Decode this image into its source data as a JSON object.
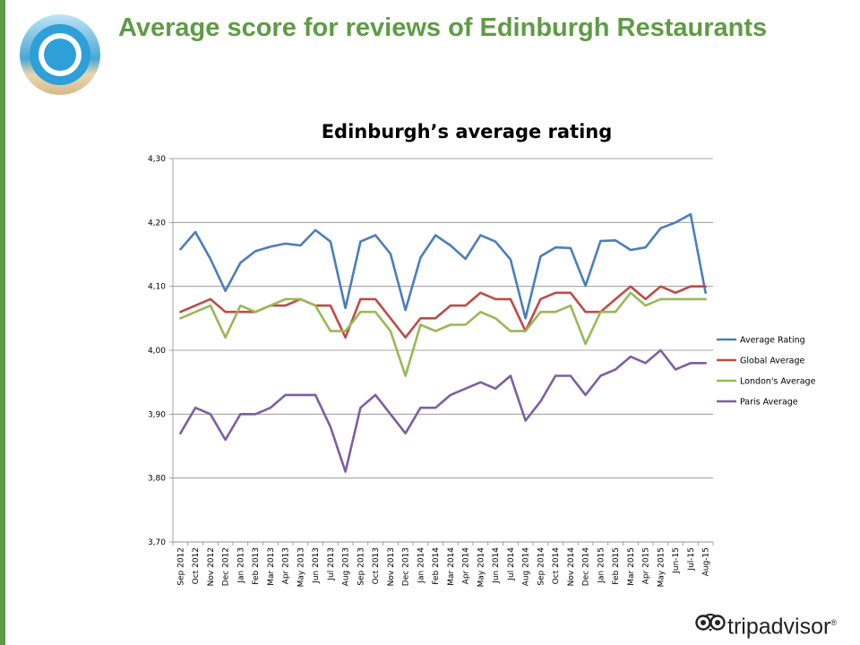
{
  "page": {
    "title": "Average score for reviews of Edinburgh Restaurants"
  },
  "brand": {
    "name": "tripadvisor",
    "mark": "®",
    "icon": "owl-eyes-icon",
    "color": "#222222"
  },
  "colors": {
    "accent_bar": "#5b9a46",
    "title": "#5f9b45",
    "logo_ring": "#2e9fd8"
  },
  "chart_data": {
    "type": "line",
    "title": "Edinburgh’s average rating",
    "xlabel": "",
    "ylabel": "",
    "ylim": [
      3.7,
      4.3
    ],
    "yticks": [
      "3,70",
      "3,80",
      "3,90",
      "4,00",
      "4,10",
      "4,20",
      "4,30"
    ],
    "grid": true,
    "legend_position": "right",
    "categories": [
      "Sep 2012",
      "Oct 2012",
      "Nov 2012",
      "Dec 2012",
      "Jan 2013",
      "Feb 2013",
      "Mar 2013",
      "Apr 2013",
      "May 2013",
      "Jun 2013",
      "Jul 2013",
      "Aug 2013",
      "Sep 2013",
      "Oct 2013",
      "Nov 2013",
      "Dec 2013",
      "Jan 2014",
      "Feb 2014",
      "Mar 2014",
      "Apr 2014",
      "May 2014",
      "Jun 2014",
      "Jul 2014",
      "Aug 2014",
      "Sep 2014",
      "Oct 2014",
      "Nov 2014",
      "Dec 2014",
      "Jan 2015",
      "Feb 2015",
      "Mar 2015",
      "Apr 2015",
      "May 2015",
      "Jun-15",
      "Jul-15",
      "Aug-15"
    ],
    "series": [
      {
        "name": "Average Rating",
        "color": "#4a7ebb",
        "values": [
          4.158,
          4.185,
          4.143,
          4.093,
          4.137,
          4.155,
          4.162,
          4.167,
          4.164,
          4.188,
          4.17,
          4.066,
          4.17,
          4.18,
          4.151,
          4.063,
          4.145,
          4.18,
          4.164,
          4.143,
          4.18,
          4.17,
          4.142,
          4.05,
          4.147,
          4.161,
          4.16,
          4.101,
          4.171,
          4.172,
          4.157,
          4.161,
          4.191,
          4.2,
          4.213,
          4.09
        ]
      },
      {
        "name": "Global Average",
        "color": "#be4b48",
        "values": [
          4.06,
          4.07,
          4.08,
          4.06,
          4.06,
          4.06,
          4.07,
          4.07,
          4.08,
          4.07,
          4.07,
          4.02,
          4.08,
          4.08,
          4.05,
          4.02,
          4.05,
          4.05,
          4.07,
          4.07,
          4.09,
          4.08,
          4.08,
          4.03,
          4.08,
          4.09,
          4.09,
          4.06,
          4.06,
          4.08,
          4.1,
          4.08,
          4.1,
          4.09,
          4.1,
          4.1
        ]
      },
      {
        "name": "London's Average",
        "color": "#98b954",
        "values": [
          4.05,
          4.06,
          4.07,
          4.02,
          4.07,
          4.06,
          4.07,
          4.08,
          4.08,
          4.07,
          4.03,
          4.03,
          4.06,
          4.06,
          4.03,
          3.96,
          4.04,
          4.03,
          4.04,
          4.04,
          4.06,
          4.05,
          4.03,
          4.03,
          4.06,
          4.06,
          4.07,
          4.01,
          4.06,
          4.06,
          4.09,
          4.07,
          4.08,
          4.08,
          4.08,
          4.08
        ]
      },
      {
        "name": "Paris Average",
        "color": "#7d5fa0",
        "values": [
          3.87,
          3.91,
          3.9,
          3.86,
          3.9,
          3.9,
          3.91,
          3.93,
          3.93,
          3.93,
          3.88,
          3.81,
          3.91,
          3.93,
          3.9,
          3.87,
          3.91,
          3.91,
          3.93,
          3.94,
          3.95,
          3.94,
          3.96,
          3.89,
          3.92,
          3.96,
          3.96,
          3.93,
          3.96,
          3.97,
          3.99,
          3.98,
          4.0,
          3.97,
          3.98,
          3.98
        ]
      }
    ]
  }
}
